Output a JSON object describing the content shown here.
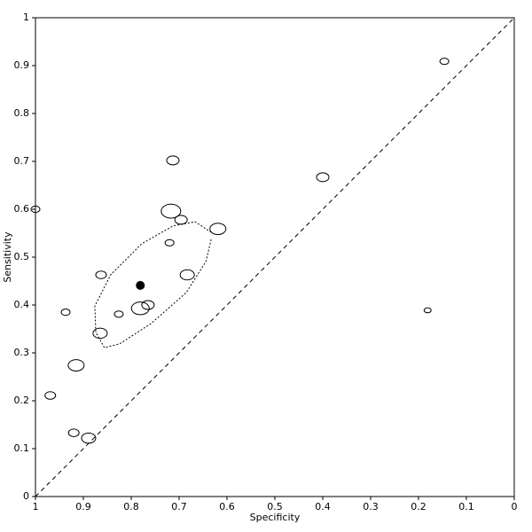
{
  "chart_data": {
    "type": "scatter",
    "x_label": "Specificity",
    "y_label": "Sensitivity",
    "xlim": [
      1,
      0
    ],
    "ylim": [
      0,
      1
    ],
    "xticks": [
      1,
      0.9,
      0.8,
      0.7,
      0.6,
      0.5,
      0.4,
      0.3,
      0.2,
      0.1,
      0
    ],
    "yticks": [
      0,
      0.1,
      0.2,
      0.3,
      0.4,
      0.5,
      0.6,
      0.7,
      0.8,
      0.9,
      1
    ],
    "diagonal": true,
    "studies": {
      "x": [
        0.146,
        0.4,
        0.181,
        0.713,
        0.717,
        0.696,
        0.619,
        0.72,
        0.683,
        0.863,
        1.0,
        0.937,
        0.826,
        0.781,
        0.765,
        0.865,
        0.915,
        0.969,
        0.92,
        0.889
      ],
      "y": [
        0.909,
        0.667,
        0.389,
        0.702,
        0.596,
        0.578,
        0.559,
        0.53,
        0.463,
        0.463,
        0.6,
        0.385,
        0.381,
        0.393,
        0.4,
        0.341,
        0.274,
        0.211,
        0.133,
        0.122
      ],
      "sizes": [
        10,
        14,
        8,
        14,
        22,
        14,
        18,
        10,
        16,
        12,
        10,
        10,
        10,
        20,
        14,
        16,
        18,
        12,
        12,
        16
      ]
    },
    "summary": {
      "x": 0.781,
      "y": 0.441
    },
    "confidence_region": {
      "x": [
        0.633,
        0.667,
        0.713,
        0.778,
        0.843,
        0.876,
        0.874,
        0.856,
        0.824,
        0.759,
        0.685,
        0.644,
        0.633
      ],
      "y": [
        0.552,
        0.574,
        0.565,
        0.528,
        0.463,
        0.398,
        0.343,
        0.311,
        0.319,
        0.361,
        0.426,
        0.491,
        0.537
      ]
    }
  }
}
